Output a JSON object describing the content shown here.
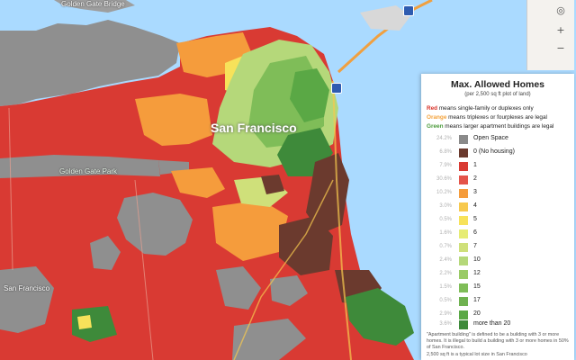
{
  "map": {
    "city_label": "San Francisco",
    "park_label": "Golden Gate Park",
    "sf_label": "San Francisco",
    "bridge_label": "Golden Gate Bridge",
    "colors": {
      "water": "#aadaff",
      "land": "#9e9e9e",
      "red": "#d93a33",
      "orange": "#f59c3c",
      "yellow": "#f7e25a",
      "lightgreen": "#b5d87a",
      "green": "#5aa845",
      "darkgreen": "#3e8a3a",
      "brown": "#6b3a2e",
      "gray": "#8a8a8a"
    }
  },
  "controls": {
    "zoom_in": "+",
    "zoom_out": "−",
    "locate": "◎"
  },
  "legend": {
    "title": "Max. Allowed Homes",
    "subtitle": "(per 2,500 sq ft plot of land)",
    "notes": {
      "red_kw": "Red",
      "red_rest": " means single-family or duplexes only",
      "orange_kw": "Orange",
      "orange_rest": " means triplexes or fourplexes are legal",
      "green_kw": "Green",
      "green_rest": " means larger apartment buildings are legal"
    },
    "rows": [
      {
        "pct": "24.2%",
        "label": "Open Space",
        "color": "#8a8a8a"
      },
      {
        "pct": "6.8%",
        "label": "0 (No housing)",
        "color": "#6b3a2e"
      },
      {
        "pct": "7.9%",
        "label": "1",
        "color": "#d93a33"
      },
      {
        "pct": "30.6%",
        "label": "2",
        "color": "#e4544a"
      },
      {
        "pct": "10.2%",
        "label": "3",
        "color": "#f59c3c"
      },
      {
        "pct": "3.0%",
        "label": "4",
        "color": "#f7c94e"
      },
      {
        "pct": "0.5%",
        "label": "5",
        "color": "#f7e25a"
      },
      {
        "pct": "1.6%",
        "label": "6",
        "color": "#e6ec74"
      },
      {
        "pct": "0.7%",
        "label": "7",
        "color": "#cfe07a"
      },
      {
        "pct": "2.4%",
        "label": "10",
        "color": "#b5d87a"
      },
      {
        "pct": "2.2%",
        "label": "12",
        "color": "#9acb66"
      },
      {
        "pct": "1.5%",
        "label": "15",
        "color": "#7fbd58"
      },
      {
        "pct": "0.5%",
        "label": "17",
        "color": "#6fb250"
      },
      {
        "pct": "2.9%",
        "label": "20",
        "color": "#5aa845"
      },
      {
        "pct": "3.6%",
        "label": "more than 20",
        "color": "#3e8a3a"
      }
    ],
    "footnote": "\"Apartment building\" is defined to be a building with 3 or more homes. It is illegal to build a building with 3 or more homes in 50% of San Francisco.",
    "footnote2": "2,500 sq ft is a typical lot size in San Francisco"
  }
}
